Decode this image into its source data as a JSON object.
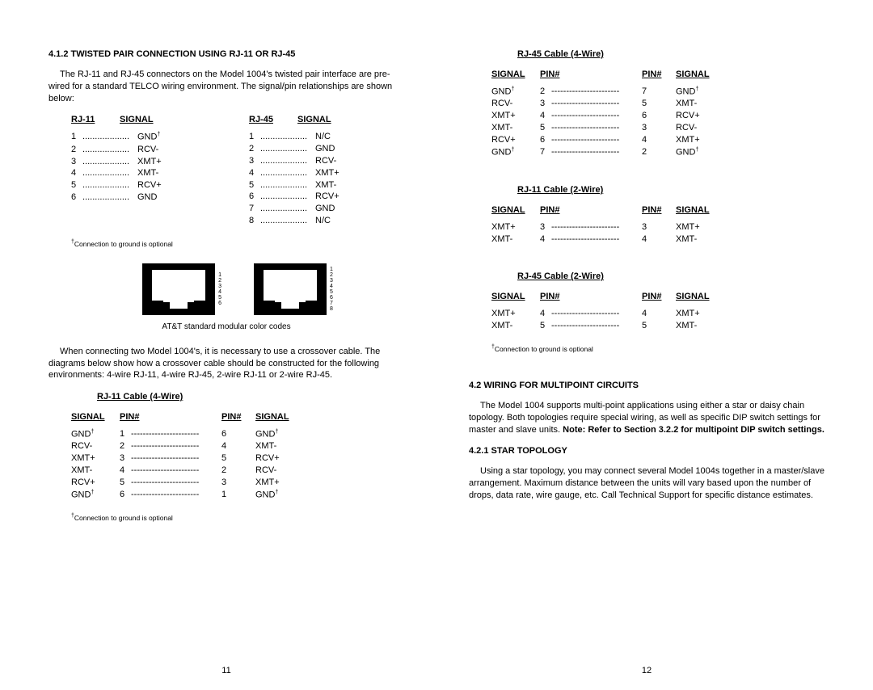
{
  "left": {
    "heading": "4.1.2  TWISTED PAIR CONNECTION USING RJ-11 OR RJ-45",
    "intro": "The RJ-11 and RJ-45 connectors on the Model 1004's twisted pair interface are pre-wired for a standard TELCO wiring environment.  The signal/pin relationships are shown below:",
    "tblA_h1": "RJ-11",
    "tblA_h2": "SIGNAL",
    "tblB_h1": "RJ-45",
    "tblB_h2": "SIGNAL",
    "rj11": [
      {
        "p": "1",
        "s": "GND†"
      },
      {
        "p": "2",
        "s": "RCV-"
      },
      {
        "p": "3",
        "s": "XMT+"
      },
      {
        "p": "4",
        "s": "XMT-"
      },
      {
        "p": "5",
        "s": "RCV+"
      },
      {
        "p": "6",
        "s": "GND"
      }
    ],
    "rj45": [
      {
        "p": "1",
        "s": "N/C"
      },
      {
        "p": "2",
        "s": "GND"
      },
      {
        "p": "3",
        "s": "RCV-"
      },
      {
        "p": "4",
        "s": "XMT+"
      },
      {
        "p": "5",
        "s": "XMT-"
      },
      {
        "p": "6",
        "s": "RCV+"
      },
      {
        "p": "7",
        "s": "GND"
      },
      {
        "p": "8",
        "s": "N/C"
      }
    ],
    "footnote1": "†Connection to ground is optional",
    "jack1_nums": "1\n2\n3\n4\n5\n6",
    "jack2_nums": "1\n2\n3\n4\n5\n6\n7\n8",
    "caption": "AT&T standard modular color codes",
    "cross_intro": "When connecting two Model 1004's, it is necessary to use a crossover cable.  The diagrams below show how a crossover cable should be constructed for the following environments:  4-wire RJ-11, 4-wire RJ-45, 2-wire RJ-11 or 2-wire RJ-45.",
    "ct1_title": "RJ-11 Cable (4-Wire)",
    "ch_s": "SIGNAL",
    "ch_p": "PIN#",
    "ct1_rows": [
      {
        "s1": "GND†",
        "p1": "1",
        "p2": "6",
        "s2": "GND†"
      },
      {
        "s1": "RCV-",
        "p1": "2",
        "p2": "4",
        "s2": "XMT-"
      },
      {
        "s1": "XMT+",
        "p1": "3",
        "p2": "5",
        "s2": "RCV+"
      },
      {
        "s1": "XMT-",
        "p1": "4",
        "p2": "2",
        "s2": "RCV-"
      },
      {
        "s1": "RCV+",
        "p1": "5",
        "p2": "3",
        "s2": "XMT+"
      },
      {
        "s1": "GND†",
        "p1": "6",
        "p2": "1",
        "s2": "GND†"
      }
    ],
    "footnote2": "†Connection to ground is optional",
    "pagenum": "11"
  },
  "right": {
    "ct2_title": "RJ-45 Cable (4-Wire)",
    "ct2_rows": [
      {
        "s1": "GND†",
        "p1": "2",
        "p2": "7",
        "s2": "GND†"
      },
      {
        "s1": "RCV-",
        "p1": "3",
        "p2": "5",
        "s2": "XMT-"
      },
      {
        "s1": "XMT+",
        "p1": "4",
        "p2": "6",
        "s2": "RCV+"
      },
      {
        "s1": "XMT-",
        "p1": "5",
        "p2": "3",
        "s2": "RCV-"
      },
      {
        "s1": "RCV+",
        "p1": "6",
        "p2": "4",
        "s2": "XMT+"
      },
      {
        "s1": "GND†",
        "p1": "7",
        "p2": "2",
        "s2": "GND†"
      }
    ],
    "ct3_title": "RJ-11 Cable (2-Wire)",
    "ct3_rows": [
      {
        "s1": "XMT+",
        "p1": "3",
        "p2": "3",
        "s2": "XMT+"
      },
      {
        "s1": "XMT-",
        "p1": "4",
        "p2": "4",
        "s2": "XMT-"
      }
    ],
    "ct4_title": "RJ-45 Cable (2-Wire)",
    "ct4_rows": [
      {
        "s1": "XMT+",
        "p1": "4",
        "p2": "4",
        "s2": "XMT+"
      },
      {
        "s1": "XMT-",
        "p1": "5",
        "p2": "5",
        "s2": "XMT-"
      }
    ],
    "footnote": "†Connection to ground is optional",
    "sec42": "4.2  WIRING FOR MULTIPOINT CIRCUITS",
    "para42": "The Model 1004 supports multi-point applications using either a star or daisy chain topology.  Both topologies require special wiring, as well as specific DIP switch settings for master and slave units.  ",
    "para42_bold": "Note:  Refer to Section 3.2.2 for multipoint DIP switch settings.",
    "sec421": "4.2.1  STAR TOPOLOGY",
    "para421": "Using a star topology, you may connect several Model 1004s together in a master/slave arrangement.  Maximum distance between the units will vary based upon the number of drops, data rate, wire gauge, etc.  Call Technical Support for specific distance estimates.",
    "ch_s": "SIGNAL",
    "ch_p": "PIN#",
    "pagenum": "12"
  },
  "dashes": "-----------------------",
  "dots": "..................."
}
